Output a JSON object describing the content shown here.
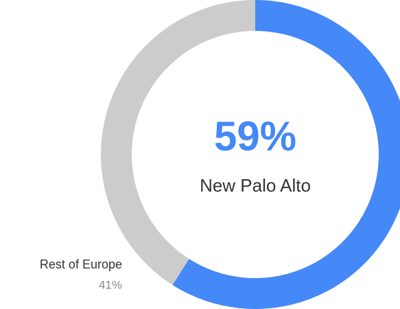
{
  "chart_data": {
    "type": "donut",
    "categories": [
      "New Palo Alto",
      "Rest of Europe"
    ],
    "values": [
      59,
      41
    ],
    "value_labels": [
      "59%",
      "41%"
    ],
    "colors": [
      "#4588f7",
      "#cccccc"
    ]
  }
}
